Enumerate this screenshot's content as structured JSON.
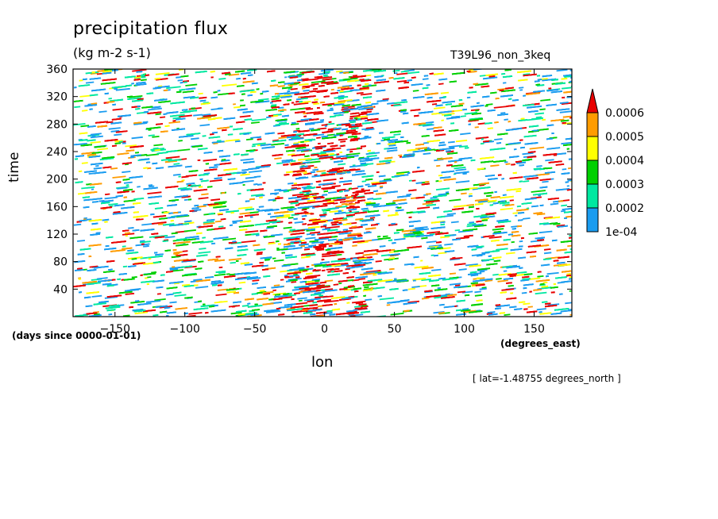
{
  "chart_data": {
    "type": "heatmap",
    "title": "precipitation flux",
    "units": "(kg m-2 s-1)",
    "run_label": "T39L96_non_3keq",
    "xlabel": "lon",
    "ylabel": "time",
    "x_units": "(degrees_east)",
    "y_units": "(days since 0000-01-01)",
    "annotation": "[ lat=-1.48755 degrees_north ]",
    "xlim": [
      -180,
      177
    ],
    "ylim": [
      0,
      360
    ],
    "x_ticks": [
      -150,
      -100,
      -50,
      0,
      50,
      100,
      150
    ],
    "x_tick_labels": [
      "−150",
      "−100",
      "−50",
      "0",
      "50",
      "100",
      "150"
    ],
    "y_ticks": [
      40,
      80,
      120,
      160,
      200,
      240,
      280,
      320,
      360
    ],
    "y_tick_labels": [
      "40",
      "80",
      "120",
      "160",
      "200",
      "240",
      "280",
      "320",
      "360"
    ],
    "colorbar": {
      "levels": [
        "1e-04",
        "0.0002",
        "0.0003",
        "0.0004",
        "0.0005",
        "0.0006"
      ],
      "colors": [
        "#1a9cf0",
        "#00e8a0",
        "#00d000",
        "#ffff00",
        "#ff9c00",
        "#e80000"
      ],
      "extend": "max"
    },
    "grid": false
  }
}
